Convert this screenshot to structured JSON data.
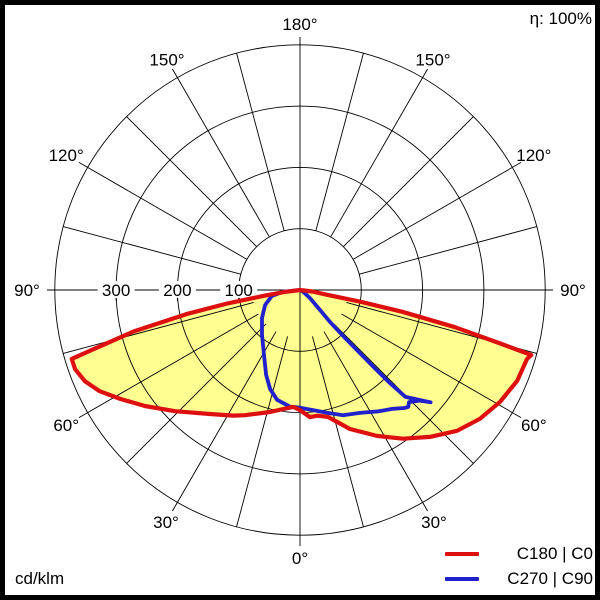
{
  "header": {
    "efficiency": "η: 100%"
  },
  "footer": {
    "unit": "cd/klm"
  },
  "legend": {
    "items": [
      {
        "label": "C180 | C0",
        "color": "#dd0f0f"
      },
      {
        "label": "C270 | C90",
        "color": "#2121cc"
      }
    ]
  },
  "chart_data": {
    "type": "polar",
    "subtype": "luminous-intensity-distribution",
    "unit": "cd/klm",
    "efficiency_label": "η: 100%",
    "gamma_zero_direction": "down",
    "radial_axis": {
      "ring_values": [
        100,
        200,
        300,
        400
      ],
      "tick_labels": [
        "300",
        "200",
        "100"
      ],
      "tick_values": [
        300,
        200,
        100
      ],
      "max": 400
    },
    "spoke_step_deg": 15,
    "grid_color": "#000000",
    "fill_color": "#ffff91",
    "background": "#ffffff",
    "border_color": "#000000",
    "angle_labels": [
      {
        "label": "180°",
        "theta": 0
      },
      {
        "label": "150°",
        "theta": -30
      },
      {
        "label": "150°",
        "theta": 30
      },
      {
        "label": "120°",
        "theta": -60
      },
      {
        "label": "120°",
        "theta": 60
      },
      {
        "label": "90°",
        "theta": -90
      },
      {
        "label": "90°",
        "theta": 90
      },
      {
        "label": "60°",
        "theta": -120
      },
      {
        "label": "60°",
        "theta": 120
      },
      {
        "label": "30°",
        "theta": -150
      },
      {
        "label": "30°",
        "theta": 150
      },
      {
        "label": "0°",
        "theta": 180
      }
    ],
    "series": [
      {
        "name": "C180 | C0",
        "color": "#dd0f0f",
        "filled": true,
        "width": 4.2,
        "points_gamma_value": [
          [
            -90,
            0
          ],
          [
            -83,
            25
          ],
          [
            -81,
            60
          ],
          [
            -79.5,
            120
          ],
          [
            -78,
            190
          ],
          [
            -76,
            280
          ],
          [
            -74,
            350
          ],
          [
            -73.2,
            389
          ],
          [
            -70.6,
            389
          ],
          [
            -67,
            381
          ],
          [
            -63.2,
            366
          ],
          [
            -58.8,
            343
          ],
          [
            -53.2,
            316
          ],
          [
            -45.9,
            284
          ],
          [
            -36,
            250
          ],
          [
            -28,
            232
          ],
          [
            -23.7,
            223
          ],
          [
            -13.8,
            205
          ],
          [
            -8,
            196
          ],
          [
            -3.4,
            191
          ],
          [
            0,
            196
          ],
          [
            4.5,
            208
          ],
          [
            8,
            207
          ],
          [
            12.4,
            212
          ],
          [
            19.8,
            241
          ],
          [
            27.8,
            269
          ],
          [
            34.7,
            295
          ],
          [
            41.5,
            320
          ],
          [
            48.1,
            344
          ],
          [
            54.4,
            361
          ],
          [
            60.8,
            374
          ],
          [
            67.3,
            384
          ],
          [
            73.1,
            387
          ],
          [
            74.3,
            392
          ],
          [
            75,
            340
          ],
          [
            76.5,
            260
          ],
          [
            78,
            170
          ],
          [
            79,
            100
          ],
          [
            80,
            45
          ],
          [
            83,
            20
          ],
          [
            90,
            0
          ]
        ]
      },
      {
        "name": "C270 | C90",
        "color": "#2121cc",
        "filled": false,
        "width": 3.8,
        "points_gamma_value": [
          [
            -90,
            0
          ],
          [
            -84,
            28
          ],
          [
            -77.9,
            47
          ],
          [
            -66.8,
            62
          ],
          [
            -53.6,
            77
          ],
          [
            -40.2,
            96
          ],
          [
            -29,
            121
          ],
          [
            -21.8,
            149
          ],
          [
            -16.7,
            169
          ],
          [
            -11.8,
            183
          ],
          [
            -4.9,
            191
          ],
          [
            0,
            192
          ],
          [
            6.2,
            197
          ],
          [
            12.4,
            205
          ],
          [
            19,
            216
          ],
          [
            26,
            223
          ],
          [
            33,
            236
          ],
          [
            38,
            246
          ],
          [
            41.5,
            257
          ],
          [
            42.8,
            260
          ],
          [
            44.2,
            255
          ],
          [
            47.3,
            266
          ],
          [
            49.3,
            281
          ],
          [
            44.6,
            245
          ],
          [
            44,
            211
          ],
          [
            43.7,
            177
          ],
          [
            43.5,
            142
          ],
          [
            43.2,
            107
          ],
          [
            43.2,
            72
          ],
          [
            45,
            46
          ],
          [
            51,
            21
          ],
          [
            60,
            6
          ],
          [
            90,
            0
          ]
        ]
      }
    ]
  }
}
